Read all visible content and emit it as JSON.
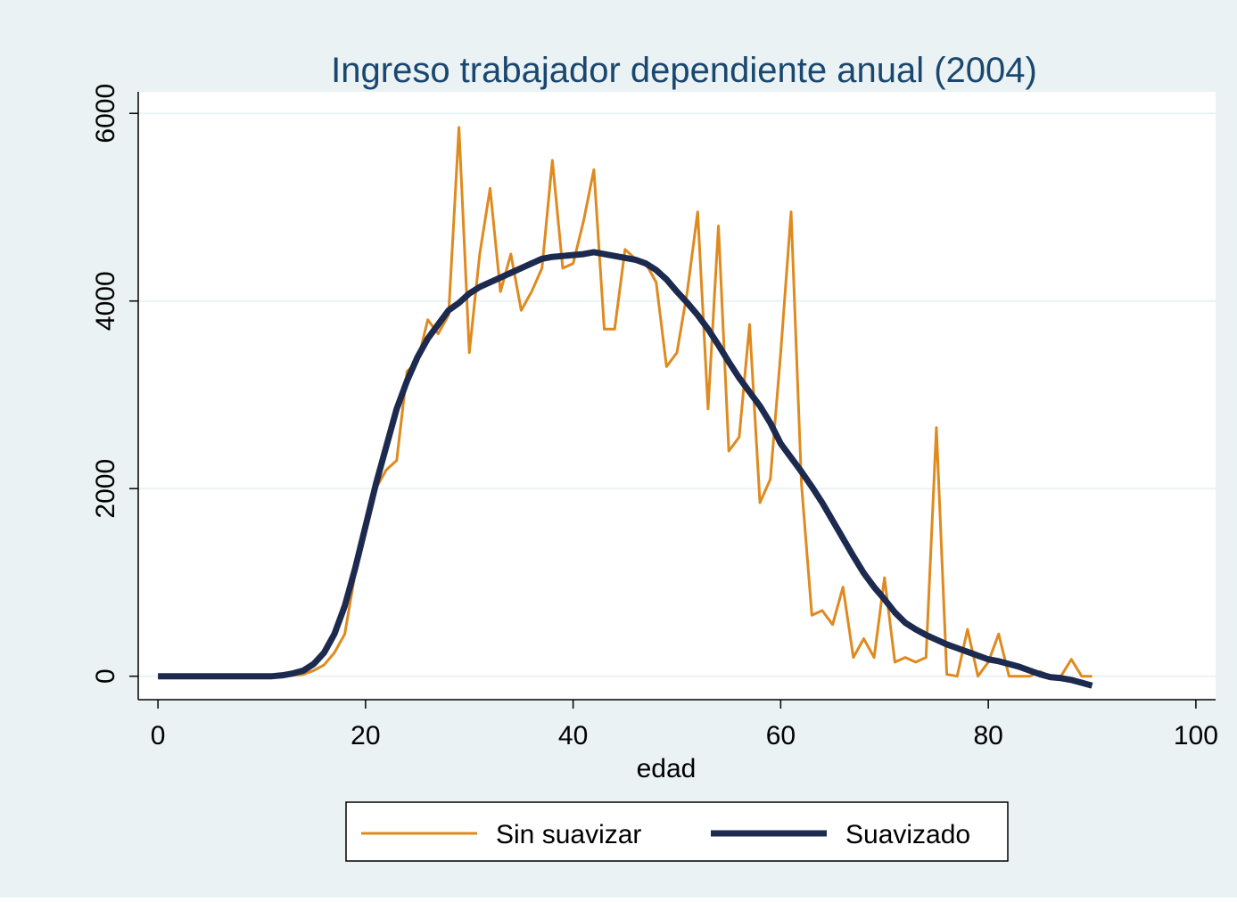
{
  "chart_data": {
    "type": "line",
    "title": "Ingreso trabajador dependiente anual (2004)",
    "x_label": "edad",
    "x": [
      0,
      1,
      2,
      3,
      4,
      5,
      6,
      7,
      8,
      9,
      10,
      11,
      12,
      13,
      14,
      15,
      16,
      17,
      18,
      19,
      20,
      21,
      22,
      23,
      24,
      25,
      26,
      27,
      28,
      29,
      30,
      31,
      32,
      33,
      34,
      35,
      36,
      37,
      38,
      39,
      40,
      41,
      42,
      43,
      44,
      45,
      46,
      47,
      48,
      49,
      50,
      51,
      52,
      53,
      54,
      55,
      56,
      57,
      58,
      59,
      60,
      61,
      62,
      63,
      64,
      65,
      66,
      67,
      68,
      69,
      70,
      71,
      72,
      73,
      74,
      75,
      76,
      77,
      78,
      79,
      80,
      81,
      82,
      83,
      84,
      85,
      86,
      87,
      88,
      89,
      90
    ],
    "series": [
      {
        "name": "Sin suavizar",
        "color": "#df8a1f",
        "width": 3,
        "values": [
          0,
          0,
          0,
          0,
          0,
          0,
          0,
          0,
          0,
          0,
          0,
          0,
          0,
          10,
          20,
          60,
          120,
          250,
          450,
          1100,
          1600,
          2000,
          2200,
          2300,
          3250,
          3350,
          3800,
          3650,
          3850,
          5850,
          3450,
          4500,
          5200,
          4100,
          4500,
          3900,
          4100,
          4350,
          5500,
          4350,
          4400,
          4850,
          5400,
          3700,
          3700,
          4550,
          4450,
          4400,
          4200,
          3300,
          3450,
          4100,
          4950,
          2850,
          4800,
          2400,
          2550,
          3750,
          1850,
          2100,
          3450,
          4950,
          2050,
          650,
          700,
          550,
          950,
          200,
          400,
          200,
          1050,
          150,
          200,
          150,
          200,
          2650,
          20,
          0,
          500,
          0,
          150,
          450,
          0,
          0,
          0,
          50,
          0,
          0,
          180,
          0,
          0
        ]
      },
      {
        "name": "Suavizado",
        "color": "#1c2a4f",
        "width": 7,
        "values": [
          0,
          0,
          0,
          0,
          0,
          0,
          0,
          0,
          0,
          0,
          0,
          0,
          10,
          30,
          60,
          130,
          250,
          450,
          750,
          1150,
          1600,
          2050,
          2450,
          2850,
          3150,
          3400,
          3600,
          3750,
          3900,
          3980,
          4080,
          4150,
          4200,
          4250,
          4300,
          4350,
          4400,
          4450,
          4470,
          4480,
          4490,
          4500,
          4520,
          4500,
          4480,
          4460,
          4440,
          4400,
          4330,
          4230,
          4100,
          3980,
          3850,
          3700,
          3530,
          3350,
          3180,
          3030,
          2880,
          2700,
          2480,
          2330,
          2180,
          2020,
          1850,
          1660,
          1470,
          1280,
          1100,
          950,
          820,
          680,
          570,
          500,
          440,
          390,
          340,
          300,
          260,
          220,
          180,
          160,
          130,
          100,
          60,
          20,
          -10,
          -20,
          -40,
          -70,
          -100
        ]
      }
    ],
    "xlim": [
      -1.9,
      101.9
    ],
    "ylim": [
      -250,
      6230
    ],
    "xticks": [
      0,
      20,
      40,
      60,
      80,
      100
    ],
    "yticks": [
      0,
      2000,
      4000,
      6000
    ],
    "grid": true,
    "legend": "bottom"
  }
}
